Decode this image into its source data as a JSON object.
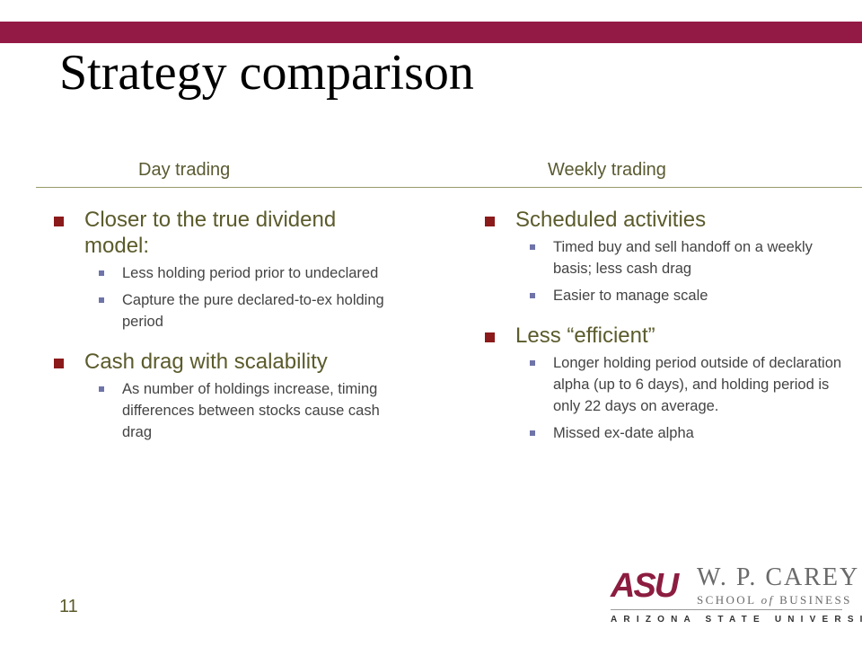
{
  "slide": {
    "title": "Strategy comparison",
    "page_number": "11",
    "accent_color": "#941a46"
  },
  "columns": [
    {
      "heading": "Day trading",
      "bullets": [
        {
          "text": "Closer to the true dividend model:",
          "subs": [
            "Less holding period prior to undeclared",
            "Capture the pure declared-to-ex holding period"
          ]
        },
        {
          "text": "Cash drag with scalability",
          "subs": [
            "As number of holdings increase, timing differences between stocks cause cash drag"
          ]
        }
      ]
    },
    {
      "heading": "Weekly trading",
      "bullets": [
        {
          "text": "Scheduled activities",
          "subs": [
            "Timed buy and sell handoff on a weekly basis; less cash drag",
            "Easier to manage scale"
          ]
        },
        {
          "text": "Less “efficient”",
          "subs": [
            "Longer holding period outside of declaration alpha (up to 6 days), and holding period is only 22 days on average.",
            "Missed ex-date alpha"
          ]
        }
      ]
    }
  ],
  "logo": {
    "mark": "ASU",
    "name": "W. P. CAREY",
    "school_pre": "SCHOOL",
    "school_of": "of",
    "school_post": "BUSINESS",
    "university": "ARIZONA STATE UNIVERSITY"
  }
}
